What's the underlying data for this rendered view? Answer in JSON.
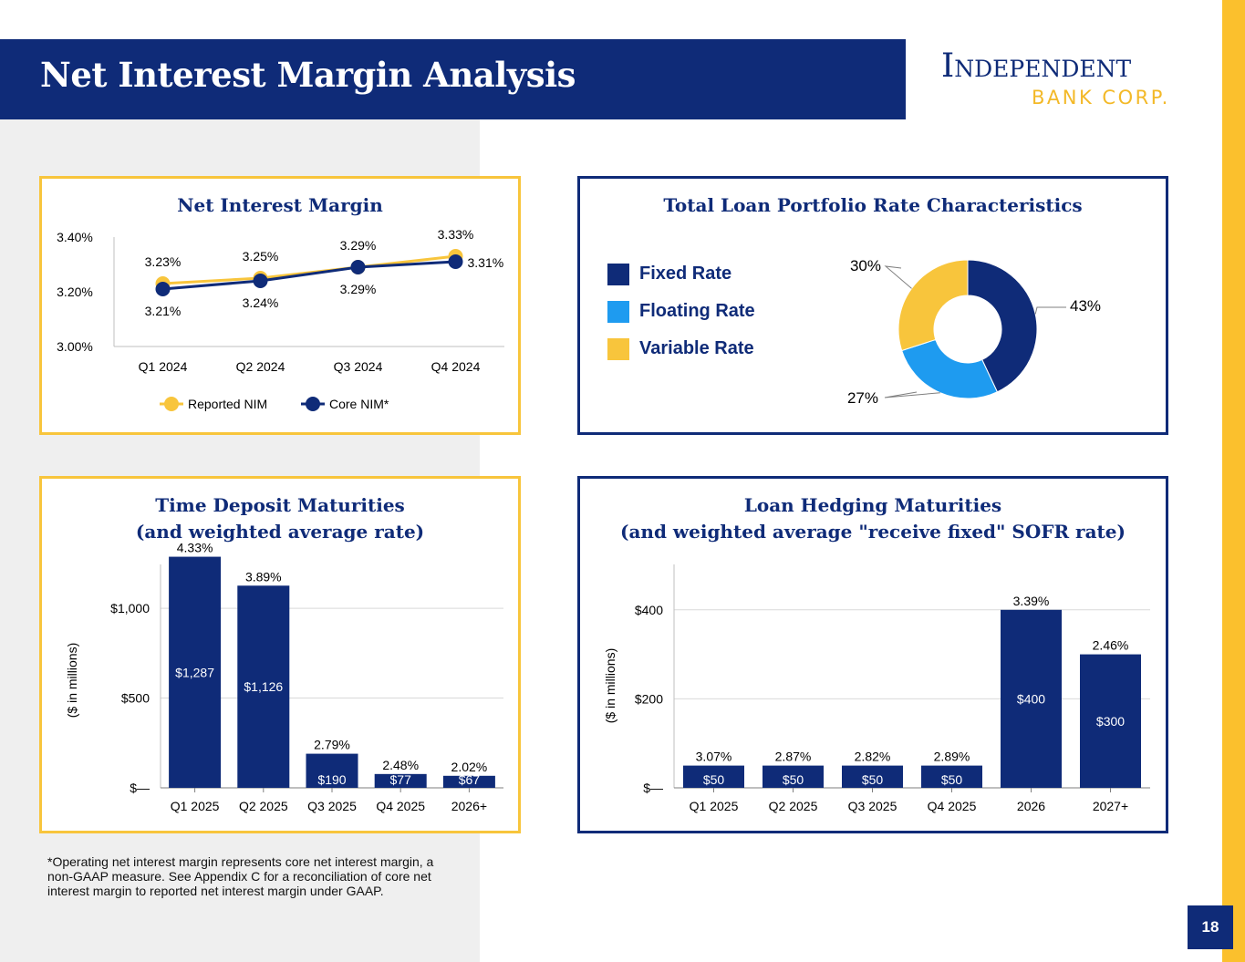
{
  "header": {
    "title": "Net Interest Margin Analysis",
    "logo_line1": "Independent",
    "logo_line2": "BANK CORP."
  },
  "colors": {
    "navy": "#0f2b78",
    "gold": "#f8c53c",
    "light_blue": "#1e9bf0",
    "gray_bg": "#efefef"
  },
  "footnote": "*Operating net interest margin represents core net interest margin, a non-GAAP measure.  See Appendix C for a reconciliation of core net interest margin to reported net interest margin under GAAP.",
  "page_number": "18",
  "chart_data": [
    {
      "type": "line",
      "title": "Net Interest Margin",
      "categories": [
        "Q1 2024",
        "Q2 2024",
        "Q3 2024",
        "Q4 2024"
      ],
      "y_tick_labels": [
        "3.40%",
        "3.20%",
        "3.00%"
      ],
      "ylim": [
        3.0,
        3.4
      ],
      "legend_position": "bottom",
      "series": [
        {
          "name": "Reported NIM",
          "values": [
            3.23,
            3.25,
            3.29,
            3.33
          ],
          "labels": [
            "3.23%",
            "3.25%",
            "3.29%",
            "3.33%"
          ],
          "color": "#f8c53c"
        },
        {
          "name": "Core NIM*",
          "values": [
            3.21,
            3.24,
            3.29,
            3.31
          ],
          "labels": [
            "3.21%",
            "3.24%",
            "3.29%",
            "3.31%"
          ],
          "color": "#0f2b78"
        }
      ]
    },
    {
      "type": "pie",
      "title": "Total Loan Portfolio Rate Characteristics",
      "legend_position": "left",
      "slices": [
        {
          "name": "Fixed Rate",
          "value": 43,
          "label": "43%",
          "color": "#0f2b78"
        },
        {
          "name": "Floating Rate",
          "value": 27,
          "label": "27%",
          "color": "#1e9bf0"
        },
        {
          "name": "Variable Rate",
          "value": 30,
          "label": "30%",
          "color": "#f8c53c"
        }
      ]
    },
    {
      "type": "bar",
      "title": "Time Deposit Maturities",
      "subtitle": "(and weighted average rate)",
      "ylabel": "($ in millions)",
      "categories": [
        "Q1 2025",
        "Q2 2025",
        "Q3 2025",
        "Q4 2025",
        "2026+"
      ],
      "values": [
        1287,
        1126,
        190,
        77,
        67
      ],
      "value_labels": [
        "$1,287",
        "$1,126",
        "$190",
        "$77",
        "$67"
      ],
      "rate_labels": [
        "4.33%",
        "3.89%",
        "2.79%",
        "2.48%",
        "2.02%"
      ],
      "y_tick_labels": [
        "$1,000",
        "$500",
        "$—"
      ],
      "ylim": [
        0,
        1300
      ],
      "grid": true
    },
    {
      "type": "bar",
      "title": "Loan Hedging Maturities",
      "subtitle": "(and weighted average \"receive fixed\" SOFR rate)",
      "ylabel": "($ in millions)",
      "categories": [
        "Q1 2025",
        "Q2 2025",
        "Q3 2025",
        "Q4 2025",
        "2026",
        "2027+"
      ],
      "values": [
        50,
        50,
        50,
        50,
        400,
        300
      ],
      "value_labels": [
        "$50",
        "$50",
        "$50",
        "$50",
        "$400",
        "$300"
      ],
      "rate_labels": [
        "3.07%",
        "2.87%",
        "2.82%",
        "2.89%",
        "3.39%",
        "2.46%"
      ],
      "y_tick_labels": [
        "$400",
        "$200",
        "$—"
      ],
      "ylim": [
        0,
        500
      ],
      "grid": true
    }
  ]
}
